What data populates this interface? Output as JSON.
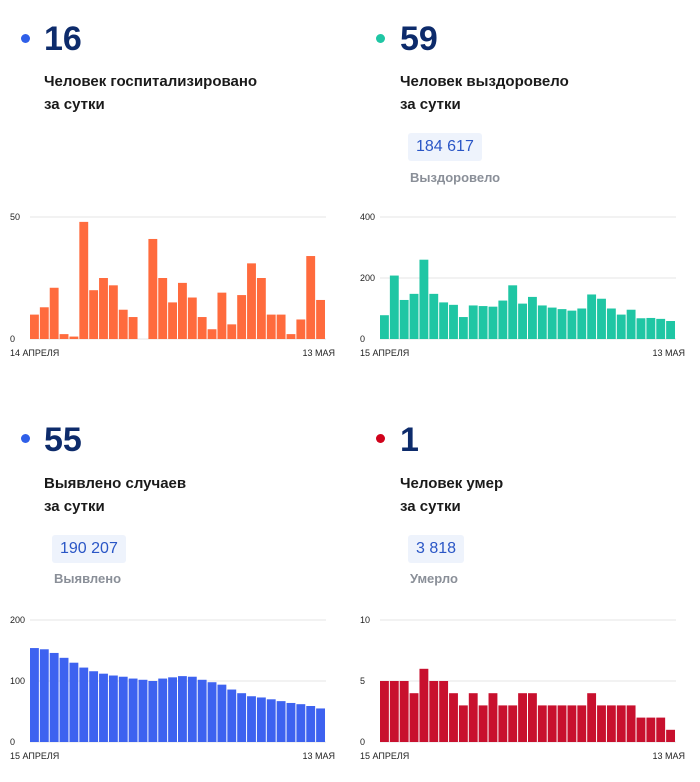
{
  "panels": [
    {
      "value": "16",
      "line1": "Человек госпитализировано",
      "line2": "за сутки",
      "total": "",
      "total_label": "",
      "dot_color": "#2f5fe8",
      "bar_color": "#ff6b3d",
      "chart_data": {
        "type": "bar",
        "ylim": [
          0,
          50
        ],
        "yticks": [
          "0",
          "50"
        ],
        "x_start": "14 АПРЕЛЯ",
        "x_end": "13 МАЯ",
        "values": [
          10,
          13,
          21,
          2,
          1,
          48,
          20,
          25,
          22,
          12,
          9,
          null,
          41,
          25,
          15,
          23,
          17,
          9,
          4,
          19,
          6,
          18,
          31,
          25,
          10,
          10,
          2,
          8,
          34,
          16
        ]
      }
    },
    {
      "value": "59",
      "line1": "Человек выздоровело",
      "line2": "за сутки",
      "total": "184 617",
      "total_label": "Выздоровело",
      "dot_color": "#1fc6a4",
      "bar_color": "#1fc6a4",
      "chart_data": {
        "type": "bar",
        "ylim": [
          0,
          400
        ],
        "yticks": [
          "0",
          "200",
          "400"
        ],
        "x_start": "15 АПРЕЛЯ",
        "x_end": "13 МАЯ",
        "values": [
          78,
          208,
          128,
          148,
          260,
          148,
          120,
          112,
          72,
          110,
          108,
          106,
          126,
          176,
          116,
          138,
          110,
          103,
          98,
          93,
          100,
          146,
          132,
          100,
          80,
          96,
          68,
          69,
          66,
          59
        ]
      }
    },
    {
      "value": "55",
      "line1": "Выявлено случаев",
      "line2": "за сутки",
      "total": "190 207",
      "total_label": "Выявлено",
      "dot_color": "#2f5fe8",
      "bar_color": "#3d62f0",
      "chart_data": {
        "type": "bar",
        "ylim": [
          0,
          200
        ],
        "yticks": [
          "0",
          "100",
          "200"
        ],
        "x_start": "15 АПРЕЛЯ",
        "x_end": "13 МАЯ",
        "values": [
          154,
          152,
          146,
          138,
          130,
          122,
          116,
          112,
          109,
          107,
          104,
          102,
          100,
          104,
          106,
          108,
          107,
          102,
          98,
          94,
          86,
          80,
          75,
          73,
          70,
          67,
          64,
          62,
          59,
          55
        ]
      }
    },
    {
      "value": "1",
      "line1": "Человек умер",
      "line2": "за сутки",
      "total": "3 818",
      "total_label": "Умерло",
      "dot_color": "#d0021b",
      "bar_color": "#c8102e",
      "chart_data": {
        "type": "bar",
        "ylim": [
          0,
          10
        ],
        "yticks": [
          "0",
          "5",
          "10"
        ],
        "x_start": "15 АПРЕЛЯ",
        "x_end": "13 МАЯ",
        "values": [
          5,
          5,
          5,
          4,
          6,
          5,
          5,
          4,
          3,
          4,
          3,
          4,
          3,
          3,
          4,
          4,
          3,
          3,
          3,
          3,
          3,
          4,
          3,
          3,
          3,
          3,
          2,
          2,
          2,
          1
        ]
      }
    }
  ]
}
